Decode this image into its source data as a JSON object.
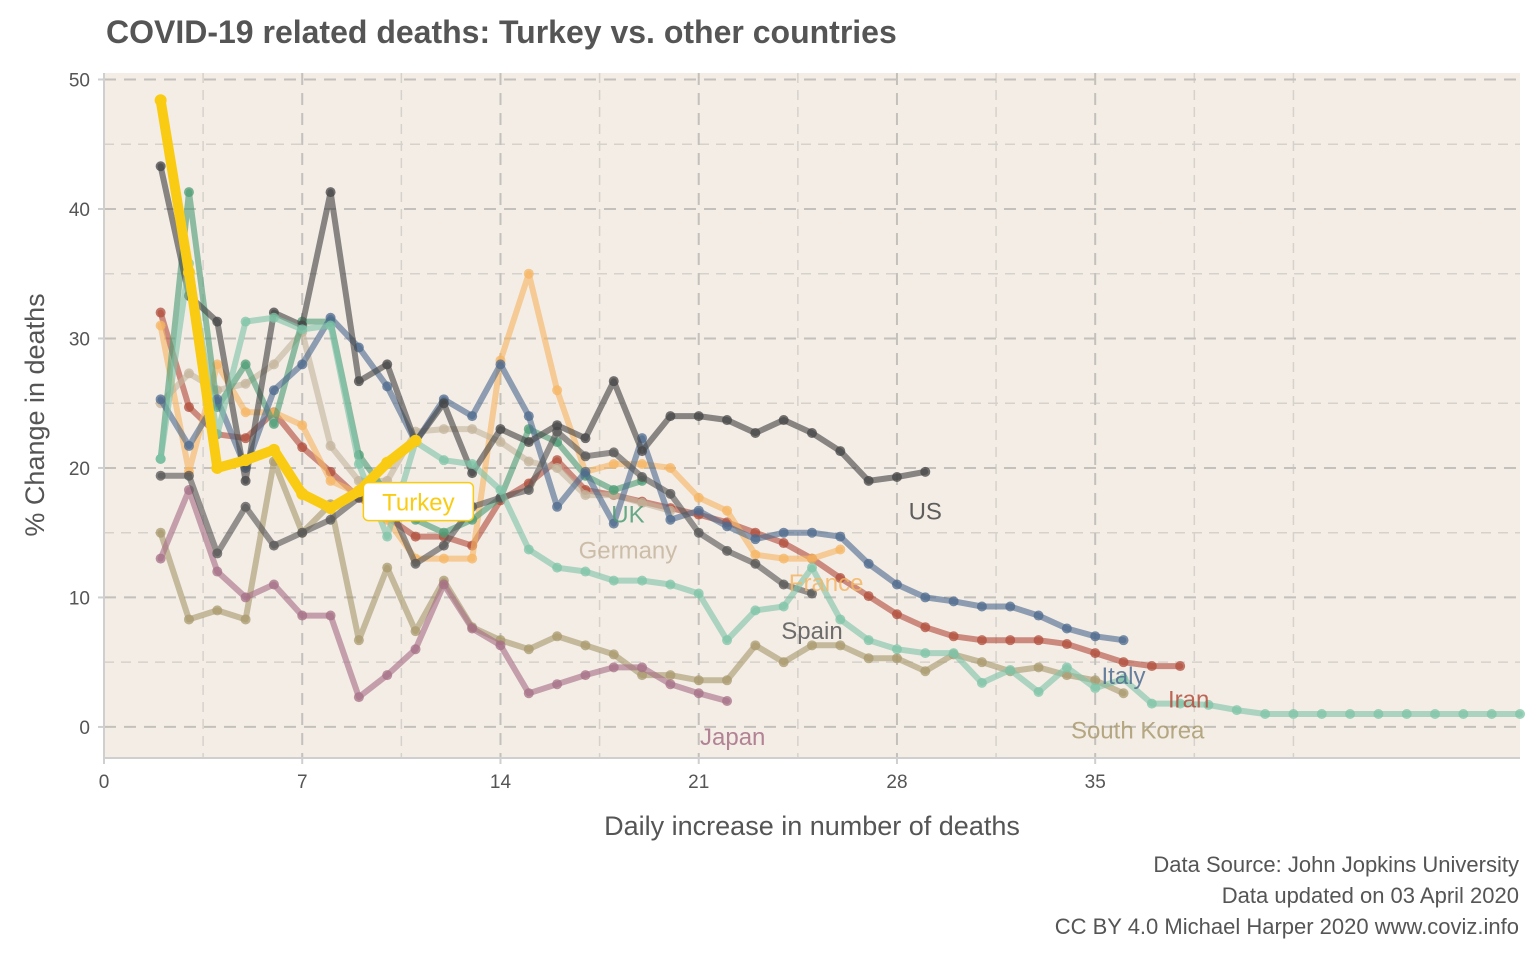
{
  "chart_data": {
    "type": "line",
    "title": "COVID-19 related deaths: Turkey vs. other countries",
    "xlabel": "Daily increase in number of deaths",
    "ylabel": "% Change in deaths",
    "xlim": [
      0,
      50
    ],
    "ylim": [
      -2.4,
      50.5
    ],
    "xticks": [
      0,
      7,
      14,
      21,
      28,
      35
    ],
    "xticks_minor": [
      3.5,
      10.5,
      17.5,
      24.5,
      31.5,
      38.5,
      42
    ],
    "yticks": [
      0,
      10,
      20,
      30,
      40,
      50
    ],
    "yticks_minor": [
      5,
      15,
      25,
      35,
      45
    ],
    "grid": true,
    "legend": "none",
    "background": "#f3ede6",
    "caption": [
      "Data Source: John Jopkins University",
      "Data updated on 03 April 2020",
      "CC BY 4.0 Michael Harper 2020 www.coviz.info"
    ],
    "series": [
      {
        "name": "South Korea",
        "color": "#a89a6e",
        "label_pos": [
          36.5,
          -0.2
        ],
        "x": [
          2,
          3,
          4,
          5,
          6,
          7,
          8,
          9,
          10,
          11,
          12,
          13,
          14,
          15,
          16,
          17,
          18,
          19,
          20,
          21,
          22,
          23,
          24,
          25,
          26,
          27,
          28,
          29,
          30,
          31,
          32,
          33,
          34,
          35,
          36
        ],
        "y": [
          15,
          8.3,
          9,
          8.3,
          20.5,
          15,
          17.2,
          6.7,
          12.3,
          7.4,
          11.3,
          7.7,
          6.7,
          6,
          7,
          6.3,
          5.6,
          4,
          4,
          3.6,
          3.6,
          6.3,
          5,
          6.3,
          6.3,
          5.3,
          5.3,
          4.3,
          5.6,
          5,
          4.3,
          4.6,
          4,
          3.6,
          2.6
        ]
      },
      {
        "name": "Japan",
        "color": "#a66f86",
        "label_pos": [
          22.2,
          -0.7
        ],
        "x": [
          2,
          3,
          4,
          5,
          6,
          7,
          8,
          9,
          10,
          11,
          12,
          13,
          14,
          15,
          16,
          17,
          18,
          19,
          20,
          21,
          22
        ],
        "y": [
          13,
          18.3,
          12,
          10,
          11,
          8.6,
          8.6,
          2.3,
          4,
          6,
          11,
          7.6,
          6.3,
          2.6,
          3.3,
          4,
          4.6,
          4.6,
          3.3,
          2.6,
          2
        ]
      },
      {
        "name": "Iran",
        "color": "#b24e3c",
        "label_pos": [
          38.3,
          2.2
        ],
        "x": [
          2,
          3,
          4,
          5,
          6,
          7,
          8,
          9,
          10,
          11,
          12,
          13,
          14,
          15,
          16,
          17,
          18,
          19,
          20,
          21,
          22,
          23,
          24,
          25,
          26,
          27,
          28,
          29,
          30,
          31,
          32,
          33,
          34,
          35,
          36,
          37,
          38
        ],
        "y": [
          32,
          24.7,
          22.6,
          22.3,
          24.3,
          21.6,
          19.7,
          17.7,
          16.2,
          14.7,
          14.7,
          14,
          17.5,
          18.8,
          20.6,
          18.3,
          17.9,
          17.4,
          16.9,
          16.4,
          15.8,
          15,
          14.2,
          13,
          11.5,
          10.1,
          8.7,
          7.7,
          7,
          6.7,
          6.7,
          6.7,
          6.4,
          5.7,
          5,
          4.7,
          4.7
        ]
      },
      {
        "name": "France",
        "color": "#f5b563",
        "label_pos": [
          25.5,
          11.2
        ],
        "x": [
          2,
          3,
          4,
          5,
          6,
          7,
          8,
          9,
          10,
          11,
          12,
          13,
          14,
          15,
          16,
          17,
          18,
          19,
          20,
          21,
          22,
          23,
          24,
          25,
          26
        ],
        "y": [
          31,
          19.7,
          28,
          24.3,
          24.3,
          23.3,
          19,
          18,
          16,
          13,
          13,
          13,
          28.3,
          35,
          26,
          19.7,
          20.3,
          20.3,
          20,
          17.7,
          16.7,
          13.3,
          13,
          13,
          13.7
        ]
      },
      {
        "name": "Germany",
        "color": "#c4b49c",
        "label_pos": [
          18.5,
          13.7
        ],
        "x": [
          2,
          3,
          4,
          5,
          6,
          7,
          8,
          9,
          10,
          11,
          12,
          13,
          14,
          15,
          16,
          17,
          18,
          19,
          20
        ],
        "y": [
          25,
          27.3,
          26,
          26.5,
          28,
          30.5,
          21.7,
          19,
          19,
          22.8,
          23,
          23,
          22,
          20.5,
          20,
          17.9,
          17.9,
          17.3,
          16.7
        ]
      },
      {
        "name": "UK",
        "color": "#4e9c76",
        "label_pos": [
          18.5,
          16.5
        ],
        "x": [
          2,
          3,
          4,
          5,
          6,
          7,
          8,
          9,
          10,
          11,
          12,
          13,
          14,
          15,
          16,
          17,
          18,
          19
        ],
        "y": [
          20.7,
          41.3,
          24.7,
          28,
          23.4,
          31.3,
          31.3,
          21,
          18,
          16,
          15,
          16,
          17.7,
          23,
          22,
          19.4,
          18.3,
          19
        ]
      },
      {
        "name": "Italy",
        "color": "#4e6a8e",
        "label_pos": [
          36,
          4
        ],
        "x": [
          2,
          3,
          4,
          5,
          6,
          7,
          8,
          9,
          10,
          11,
          12,
          13,
          14,
          15,
          16,
          17,
          18,
          19,
          20,
          21,
          22,
          23,
          24,
          25,
          26,
          27,
          28,
          29,
          30,
          31,
          32,
          33,
          34,
          35,
          36
        ],
        "y": [
          25.3,
          21.7,
          25.3,
          20,
          26,
          28,
          31.6,
          29.3,
          26.3,
          22,
          25.3,
          24,
          28,
          24,
          17,
          19.7,
          15.7,
          22.3,
          16,
          16.7,
          15.5,
          14.5,
          15,
          15,
          14.7,
          12.6,
          11,
          10,
          9.7,
          9.3,
          9.3,
          8.6,
          7.6,
          7,
          6.7
        ]
      },
      {
        "name": "Spain",
        "color": "#555555",
        "label_pos": [
          25,
          7.5
        ],
        "x": [
          2,
          3,
          4,
          5,
          6,
          7,
          8,
          9,
          10,
          11,
          12,
          13,
          14,
          15,
          16,
          17,
          18,
          19,
          20,
          21,
          22,
          23,
          24,
          25
        ],
        "y": [
          19.4,
          19.4,
          13.4,
          17,
          14,
          15,
          16,
          17.7,
          17.5,
          12.6,
          14,
          17,
          17.7,
          18.3,
          22.8,
          20.9,
          21.2,
          19.3,
          18,
          15,
          13.6,
          12.6,
          11,
          10.3
        ]
      },
      {
        "name": "US",
        "color": "#444444",
        "label_pos": [
          29,
          16.7
        ],
        "x": [
          2,
          3,
          4,
          5,
          6,
          7,
          8,
          9,
          10,
          11,
          12,
          13,
          14,
          15,
          16,
          17,
          18,
          19,
          20,
          21,
          22,
          23,
          24,
          25,
          26,
          27,
          28,
          29
        ],
        "y": [
          43.3,
          33.3,
          31.3,
          19,
          32,
          31,
          41.3,
          26.7,
          28,
          22,
          25,
          19.6,
          23,
          22,
          23.3,
          22.3,
          26.7,
          21.3,
          24,
          24,
          23.7,
          22.7,
          23.7,
          22.7,
          21.3,
          19,
          19.3,
          19.7
        ]
      },
      {
        "name": "",
        "color": "#7fc4a8",
        "x": [
          2,
          3,
          4,
          5,
          6,
          7,
          8,
          9,
          10,
          11,
          12,
          13,
          14,
          15,
          16,
          17,
          18,
          19,
          20,
          21,
          22,
          23,
          24,
          25,
          26,
          27,
          28,
          29,
          30,
          31,
          32,
          33,
          34,
          35,
          36,
          37,
          38,
          39,
          40,
          41,
          42,
          43,
          44,
          45,
          46,
          47,
          48,
          49,
          50
        ],
        "y": [
          20.7,
          35.8,
          22.6,
          31.3,
          31.6,
          30.7,
          31,
          20.3,
          14.7,
          22,
          20.6,
          20.3,
          18.3,
          13.7,
          12.3,
          12,
          11.3,
          11.3,
          11,
          10.3,
          6.7,
          9,
          9.3,
          12.3,
          8.3,
          6.7,
          6,
          5.7,
          5.7,
          3.4,
          4.4,
          2.7,
          4.6,
          3,
          3.7,
          1.8,
          1.8,
          1.7,
          1.3,
          1,
          1,
          1,
          1,
          1,
          1,
          1,
          1,
          1,
          1
        ]
      },
      {
        "name": "Turkey",
        "color": "#f9cc13",
        "highlight": true,
        "label_pos": [
          11.1,
          17.4
        ],
        "x": [
          2,
          3,
          4,
          5,
          6,
          7,
          8,
          9,
          10,
          11
        ],
        "y": [
          48.4,
          35.1,
          20,
          20.6,
          21.4,
          18,
          16.9,
          18.2,
          20.4,
          22.1
        ]
      }
    ]
  }
}
